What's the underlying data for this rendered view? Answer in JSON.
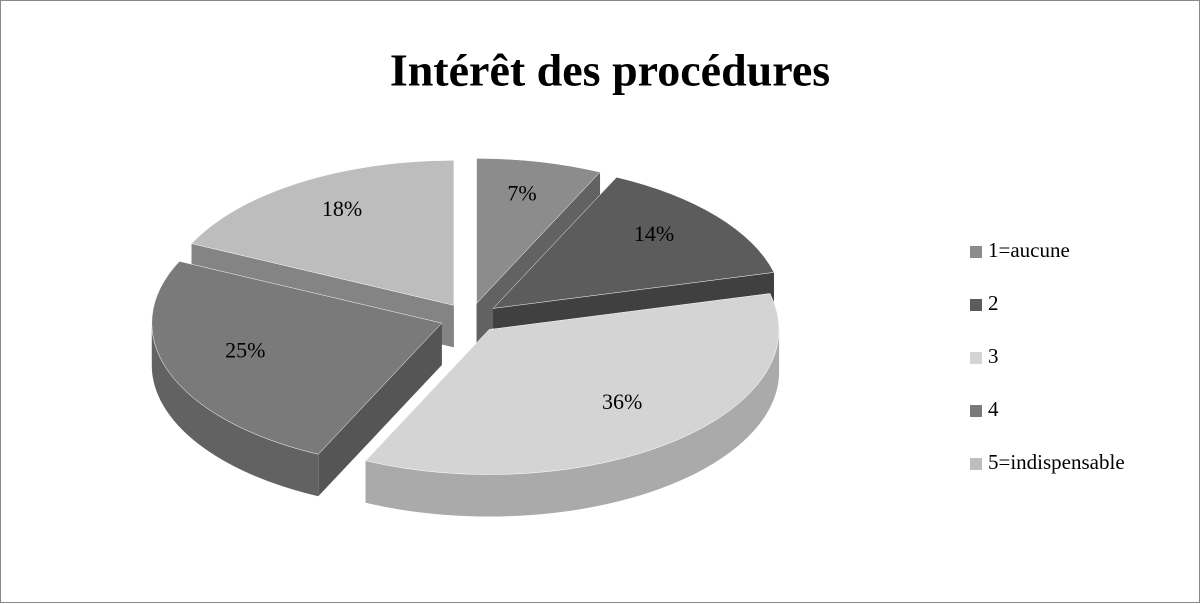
{
  "chart_data": {
    "type": "pie",
    "title": "Intérêt des procédures",
    "categories": [
      "1=aucune",
      "2",
      "3",
      "4",
      "5=indispensable"
    ],
    "values": [
      7,
      14,
      36,
      25,
      18
    ],
    "value_labels": [
      "7%",
      "14%",
      "36%",
      "25%",
      "18%"
    ],
    "colors": [
      "#8c8c8c",
      "#5c5c5c",
      "#d4d4d4",
      "#7a7a7a",
      "#bdbdbd"
    ],
    "legend": "right"
  }
}
